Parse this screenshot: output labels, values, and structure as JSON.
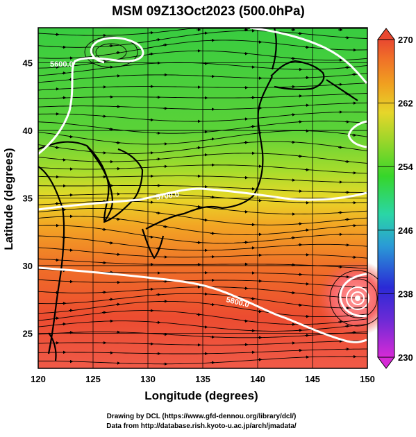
{
  "title": "MSM 09Z13Oct2023 (500.0hPa)",
  "x_axis": {
    "label": "Longitude (degrees)",
    "range": [
      120,
      150
    ],
    "ticks": [
      "120",
      "125",
      "130",
      "135",
      "140",
      "145",
      "150"
    ]
  },
  "y_axis": {
    "label": "Latitude  (degrees)",
    "range": [
      22.4,
      47.6
    ],
    "ticks": [
      "25",
      "30",
      "35",
      "40",
      "45"
    ]
  },
  "colorbar": {
    "range": [
      230,
      270
    ],
    "ticks": [
      "270",
      "262",
      "254",
      "246",
      "238",
      "230"
    ],
    "colors": [
      "#d62ad6",
      "#2a2ad6",
      "#2ab4d6",
      "#2ad69a",
      "#36d62a",
      "#9ad62a",
      "#e6d62a",
      "#f0a020",
      "#f07028",
      "#e84830"
    ]
  },
  "contours": [
    {
      "label": "5600.0"
    },
    {
      "label": "5700.0"
    },
    {
      "label": "5800.0"
    }
  ],
  "credits": {
    "line1": "Drawing by DCL (https://www.gfd-dennou.org/library/dcl/)",
    "line2": "Data from http://database.rish.kyoto-u.ac.jp/arch/jmadata/"
  }
}
